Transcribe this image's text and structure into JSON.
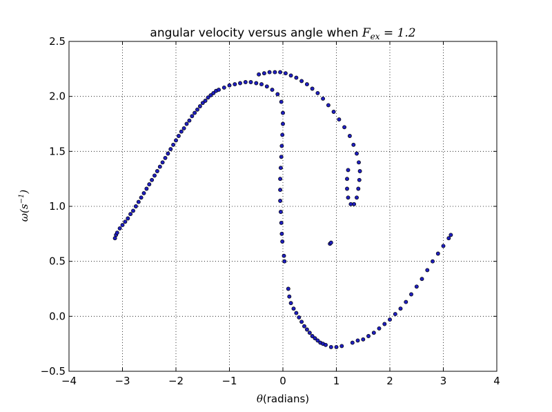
{
  "chart_data": {
    "type": "scatter",
    "title": {
      "prefix": "angular velocity versus angle when ",
      "math_var": "F",
      "math_sub": "ex",
      "math_rest": " = 1.2"
    },
    "xlabel": {
      "math": "θ",
      "text": "(radians)"
    },
    "ylabel": {
      "math": "ω",
      "open": "(",
      "var": "s",
      "sup": "−1",
      "close": ")"
    },
    "xlim": [
      -4,
      4
    ],
    "ylim": [
      -0.5,
      2.5
    ],
    "xticks": [
      -4,
      -3,
      -2,
      -1,
      0,
      1,
      2,
      3,
      4
    ],
    "yticks": [
      -0.5,
      0.0,
      0.5,
      1.0,
      1.5,
      2.0,
      2.5
    ],
    "xtick_labels": [
      "−4",
      "−3",
      "−2",
      "−1",
      "0",
      "1",
      "2",
      "3",
      "4"
    ],
    "ytick_labels": [
      "−0.5",
      "0.0",
      "0.5",
      "1.0",
      "1.5",
      "2.0",
      "2.5"
    ],
    "grid": true,
    "marker_color": "#1f1fbf",
    "series": [
      {
        "points": [
          [
            -3.14,
            0.71
          ],
          [
            -3.12,
            0.74
          ],
          [
            -3.1,
            0.76
          ],
          [
            -3.05,
            0.8
          ],
          [
            -3.0,
            0.83
          ],
          [
            -2.95,
            0.86
          ],
          [
            -2.9,
            0.89
          ],
          [
            -2.85,
            0.93
          ],
          [
            -2.8,
            0.96
          ],
          [
            -2.75,
            1.0
          ],
          [
            -2.7,
            1.04
          ],
          [
            -2.65,
            1.08
          ],
          [
            -2.6,
            1.12
          ],
          [
            -2.55,
            1.16
          ],
          [
            -2.5,
            1.2
          ],
          [
            -2.45,
            1.24
          ],
          [
            -2.4,
            1.28
          ],
          [
            -2.35,
            1.32
          ],
          [
            -2.3,
            1.36
          ],
          [
            -2.25,
            1.4
          ],
          [
            -2.2,
            1.44
          ],
          [
            -2.15,
            1.48
          ],
          [
            -2.1,
            1.52
          ],
          [
            -2.05,
            1.56
          ],
          [
            -2.0,
            1.6
          ],
          [
            -1.95,
            1.64
          ],
          [
            -1.9,
            1.68
          ],
          [
            -1.85,
            1.71
          ],
          [
            -1.8,
            1.75
          ],
          [
            -1.75,
            1.78
          ],
          [
            -1.7,
            1.82
          ],
          [
            -1.65,
            1.85
          ],
          [
            -1.6,
            1.88
          ],
          [
            -1.55,
            1.91
          ],
          [
            -1.5,
            1.94
          ],
          [
            -1.45,
            1.96
          ],
          [
            -1.4,
            1.99
          ],
          [
            -1.35,
            2.01
          ],
          [
            -1.3,
            2.03
          ],
          [
            -1.25,
            2.05
          ],
          [
            -1.2,
            2.06
          ],
          [
            -1.1,
            2.08
          ],
          [
            -1.0,
            2.1
          ],
          [
            -0.9,
            2.11
          ],
          [
            -0.8,
            2.12
          ],
          [
            -0.7,
            2.13
          ],
          [
            -0.6,
            2.13
          ],
          [
            -0.5,
            2.12
          ],
          [
            -0.4,
            2.11
          ],
          [
            -0.3,
            2.09
          ],
          [
            -0.2,
            2.06
          ],
          [
            -0.1,
            2.02
          ],
          [
            -0.03,
            1.95
          ],
          [
            0.0,
            1.85
          ],
          [
            0.0,
            1.75
          ],
          [
            -0.01,
            1.65
          ],
          [
            -0.02,
            1.55
          ],
          [
            -0.03,
            1.45
          ],
          [
            -0.04,
            1.35
          ],
          [
            -0.05,
            1.25
          ],
          [
            -0.05,
            1.15
          ],
          [
            -0.05,
            1.05
          ],
          [
            -0.04,
            0.95
          ],
          [
            -0.03,
            0.85
          ],
          [
            -0.02,
            0.75
          ],
          [
            -0.01,
            0.68
          ],
          [
            0.02,
            0.55
          ],
          [
            0.03,
            0.5
          ],
          [
            0.1,
            0.25
          ],
          [
            0.12,
            0.18
          ],
          [
            0.15,
            0.12
          ],
          [
            0.2,
            0.07
          ],
          [
            0.25,
            0.03
          ],
          [
            0.3,
            -0.01
          ],
          [
            0.35,
            -0.05
          ],
          [
            0.4,
            -0.09
          ],
          [
            0.45,
            -0.12
          ],
          [
            0.5,
            -0.15
          ],
          [
            0.55,
            -0.18
          ],
          [
            0.6,
            -0.2
          ],
          [
            0.65,
            -0.22
          ],
          [
            0.7,
            -0.24
          ],
          [
            0.75,
            -0.25
          ],
          [
            0.8,
            -0.26
          ],
          [
            0.9,
            -0.28
          ],
          [
            1.0,
            -0.28
          ],
          [
            1.1,
            -0.27
          ],
          [
            1.3,
            -0.24
          ],
          [
            1.4,
            -0.22
          ],
          [
            1.5,
            -0.21
          ],
          [
            1.6,
            -0.18
          ],
          [
            1.7,
            -0.15
          ],
          [
            1.8,
            -0.11
          ],
          [
            1.9,
            -0.07
          ],
          [
            2.0,
            -0.03
          ],
          [
            2.1,
            0.02
          ],
          [
            2.2,
            0.07
          ],
          [
            2.3,
            0.13
          ],
          [
            2.4,
            0.2
          ],
          [
            2.5,
            0.27
          ],
          [
            2.6,
            0.34
          ],
          [
            2.7,
            0.42
          ],
          [
            2.8,
            0.5
          ],
          [
            2.9,
            0.57
          ],
          [
            3.0,
            0.64
          ],
          [
            3.1,
            0.71
          ],
          [
            3.14,
            0.74
          ],
          [
            -0.45,
            2.2
          ],
          [
            -0.35,
            2.21
          ],
          [
            -0.25,
            2.22
          ],
          [
            -0.15,
            2.22
          ],
          [
            -0.05,
            2.22
          ],
          [
            0.05,
            2.21
          ],
          [
            0.15,
            2.19
          ],
          [
            0.25,
            2.17
          ],
          [
            0.35,
            2.14
          ],
          [
            0.45,
            2.11
          ],
          [
            0.55,
            2.07
          ],
          [
            0.65,
            2.03
          ],
          [
            0.75,
            1.98
          ],
          [
            0.85,
            1.92
          ],
          [
            0.95,
            1.86
          ],
          [
            1.05,
            1.79
          ],
          [
            1.15,
            1.72
          ],
          [
            1.25,
            1.64
          ],
          [
            1.32,
            1.56
          ],
          [
            1.38,
            1.48
          ],
          [
            1.42,
            1.4
          ],
          [
            1.44,
            1.32
          ],
          [
            1.43,
            1.24
          ],
          [
            1.41,
            1.16
          ],
          [
            1.38,
            1.08
          ],
          [
            1.33,
            1.02
          ],
          [
            1.27,
            1.02
          ],
          [
            1.22,
            1.08
          ],
          [
            1.2,
            1.16
          ],
          [
            1.2,
            1.25
          ],
          [
            1.22,
            1.33
          ],
          [
            0.88,
            0.66
          ],
          [
            0.9,
            0.67
          ]
        ]
      }
    ]
  }
}
